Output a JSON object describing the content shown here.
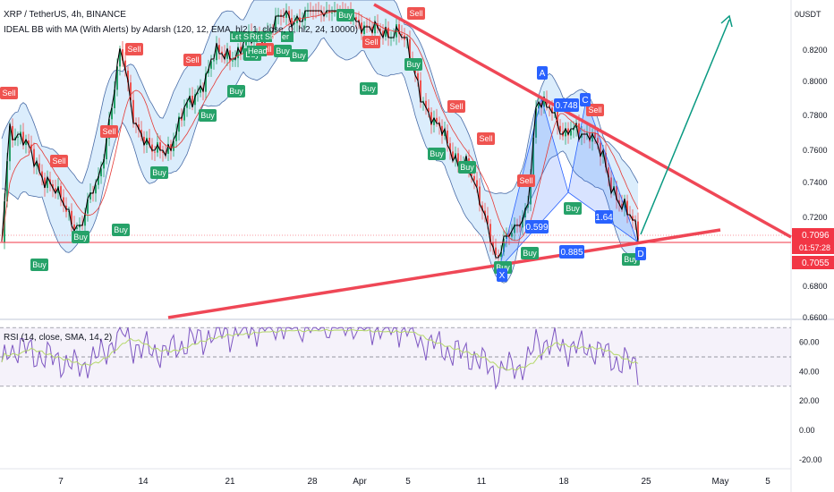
{
  "header": {
    "symbol_line": "XRP / TetherUS, 4h, BINANCE",
    "indicator_line": "IDEAL BB with MA (With Alerts) by Adarsh (120, 12, EMA, hl2, 1, close, 0, hl2, 24, 10000)"
  },
  "price_axis": {
    "currency_label": "USDT",
    "ticks": [
      "0.8200",
      "0.8000",
      "0.7800",
      "0.7600",
      "0.7400",
      "0.7200",
      "0.6800",
      "0.6600"
    ],
    "tag_current": "0.7096",
    "tag_countdown": "01:57:28",
    "tag_level": "0.7055",
    "tag_current_color": "#f23645",
    "tag_level_color": "#f23645"
  },
  "rsi_panel": {
    "label": "RSI (14, close, SMA, 14, 2)",
    "ticks": [
      "60.00",
      "40.00",
      "20.00",
      "0.00",
      "-20.00"
    ],
    "upper": 70,
    "middle": 50,
    "lower": 30
  },
  "time_axis": {
    "ticks": [
      "7",
      "14",
      "21",
      "28",
      "Apr",
      "5",
      "11",
      "18",
      "25",
      "May",
      "5"
    ]
  },
  "signals": [
    {
      "text": "Sell",
      "type": "sell"
    },
    {
      "text": "Sell",
      "type": "sell"
    },
    {
      "text": "Sell",
      "type": "sell"
    },
    {
      "text": "Sell",
      "type": "sell"
    },
    {
      "text": "Sell",
      "type": "sell"
    },
    {
      "text": "Sell",
      "type": "sell"
    },
    {
      "text": "Sell",
      "type": "sell"
    },
    {
      "text": "Sell",
      "type": "sell"
    },
    {
      "text": "Sell",
      "type": "sell"
    },
    {
      "text": "Sell",
      "type": "sell"
    },
    {
      "text": "Sell",
      "type": "sell"
    },
    {
      "text": "Sell",
      "type": "sell"
    },
    {
      "text": "Buy",
      "type": "buy"
    },
    {
      "text": "Buy",
      "type": "buy"
    },
    {
      "text": "Buy",
      "type": "buy"
    },
    {
      "text": "Buy",
      "type": "buy"
    },
    {
      "text": "Buy",
      "type": "buy"
    },
    {
      "text": "Buy",
      "type": "buy"
    },
    {
      "text": "Buy",
      "type": "buy"
    },
    {
      "text": "Buy",
      "type": "buy"
    },
    {
      "text": "Buy",
      "type": "buy"
    },
    {
      "text": "Buy",
      "type": "buy"
    },
    {
      "text": "Buy",
      "type": "buy"
    },
    {
      "text": "Buy",
      "type": "buy"
    },
    {
      "text": "Buy",
      "type": "buy"
    },
    {
      "text": "Buy",
      "type": "buy"
    },
    {
      "text": "Buy",
      "type": "buy"
    },
    {
      "text": "Buy",
      "type": "buy"
    },
    {
      "text": "Buy",
      "type": "buy"
    },
    {
      "text": "Buy",
      "type": "buy"
    }
  ],
  "pattern_labels": [
    {
      "text": "0.748"
    },
    {
      "text": "0.599"
    },
    {
      "text": "1.64"
    },
    {
      "text": "0.885"
    },
    {
      "text": "X"
    },
    {
      "text": "D"
    },
    {
      "text": "C"
    },
    {
      "text": "A"
    }
  ],
  "left_shoulder_text": {
    "a": "Le",
    "b": "t Sh",
    "c": "Righ",
    "d": "t Sh",
    "e": "er",
    "f": "Head"
  },
  "colors": {
    "buy": "#26a269",
    "sell": "#ef5350",
    "pattern": "#2962ff",
    "trendline": "#ef4756",
    "arrow": "#089981",
    "band_fill": "#cfe7fb",
    "band_line": "#4a6da7",
    "rsi_line": "#7e57c2"
  },
  "chart_data": {
    "type": "line",
    "series": [],
    "y_range": [
      0.655,
      0.845
    ],
    "rsi_range": [
      -25,
      75
    ]
  }
}
